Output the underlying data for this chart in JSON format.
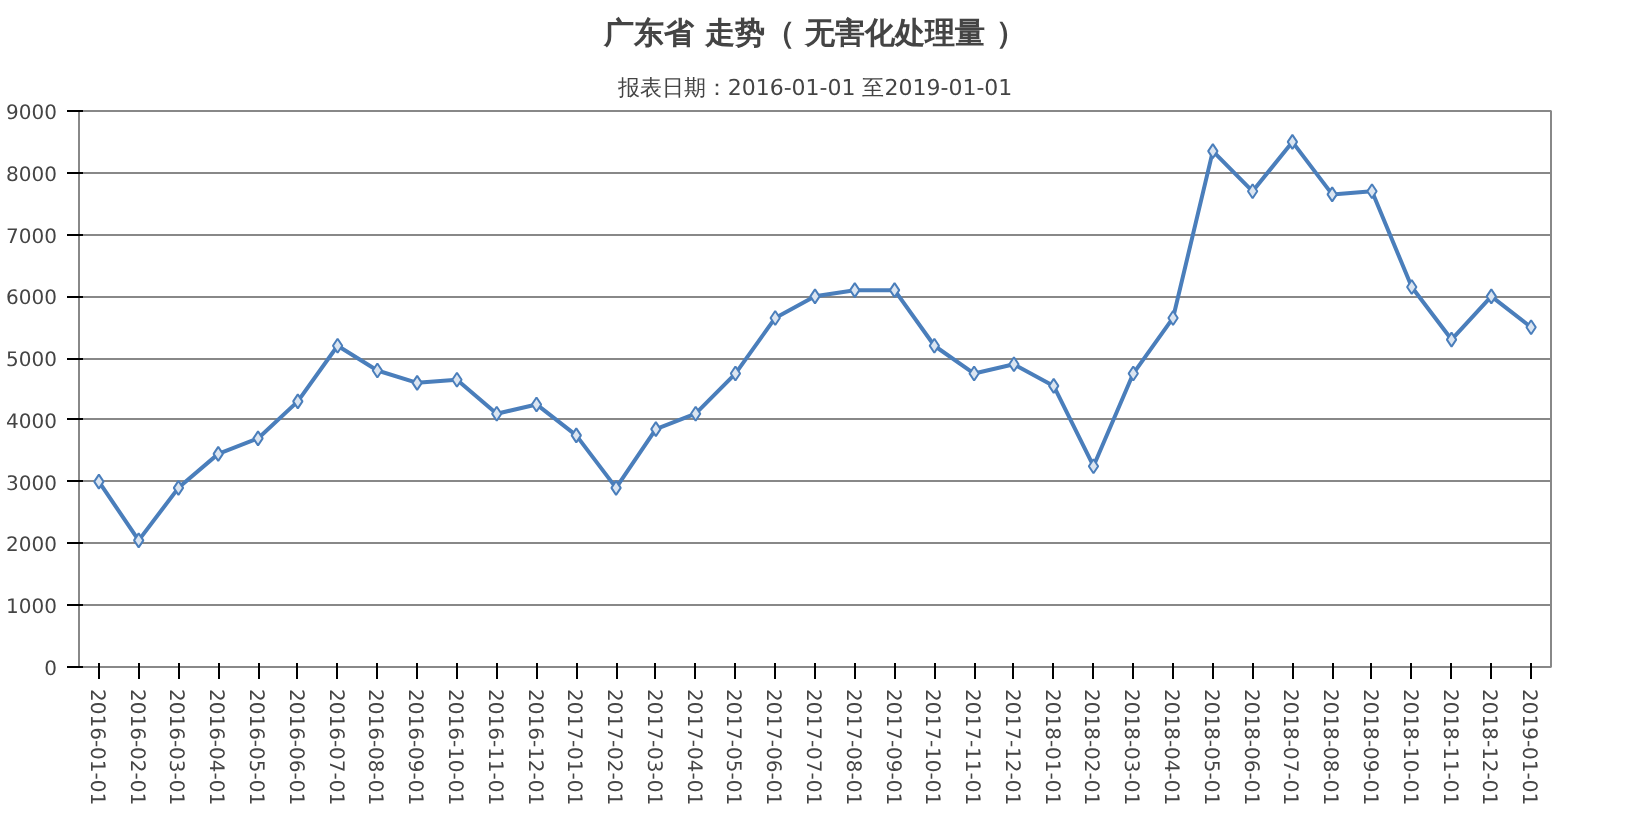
{
  "chart_data": {
    "type": "line",
    "title": "广东省 走势（ 无害化处理量 ）",
    "subtitle": "报表日期：2016-01-01 至2019-01-01",
    "categories": [
      "2016-01-01",
      "2016-02-01",
      "2016-03-01",
      "2016-04-01",
      "2016-05-01",
      "2016-06-01",
      "2016-07-01",
      "2016-08-01",
      "2016-09-01",
      "2016-10-01",
      "2016-11-01",
      "2016-12-01",
      "2017-01-01",
      "2017-02-01",
      "2017-03-01",
      "2017-04-01",
      "2017-05-01",
      "2017-06-01",
      "2017-07-01",
      "2017-08-01",
      "2017-09-01",
      "2017-10-01",
      "2017-11-01",
      "2017-12-01",
      "2018-01-01",
      "2018-02-01",
      "2018-03-01",
      "2018-04-01",
      "2018-05-01",
      "2018-06-01",
      "2018-07-01",
      "2018-08-01",
      "2018-09-01",
      "2018-10-01",
      "2018-11-01",
      "2018-12-01",
      "2019-01-01"
    ],
    "series": [
      {
        "color": "#4a7ebb",
        "values": [
          3000,
          2050,
          2900,
          3450,
          3700,
          4300,
          5200,
          4800,
          4600,
          4650,
          4100,
          4250,
          3750,
          2900,
          3850,
          4100,
          4750,
          5650,
          6000,
          6100,
          6100,
          5200,
          4750,
          4900,
          4550,
          3250,
          4750,
          5650,
          8350,
          7700,
          8500,
          7650,
          7700,
          6150,
          5300,
          6000,
          5500
        ]
      }
    ],
    "ylim": [
      0,
      9000
    ],
    "yticks": [
      0,
      1000,
      2000,
      3000,
      4000,
      5000,
      6000,
      7000,
      8000,
      9000
    ],
    "grid": "y",
    "marker": "diamond",
    "line_style": "solid"
  }
}
